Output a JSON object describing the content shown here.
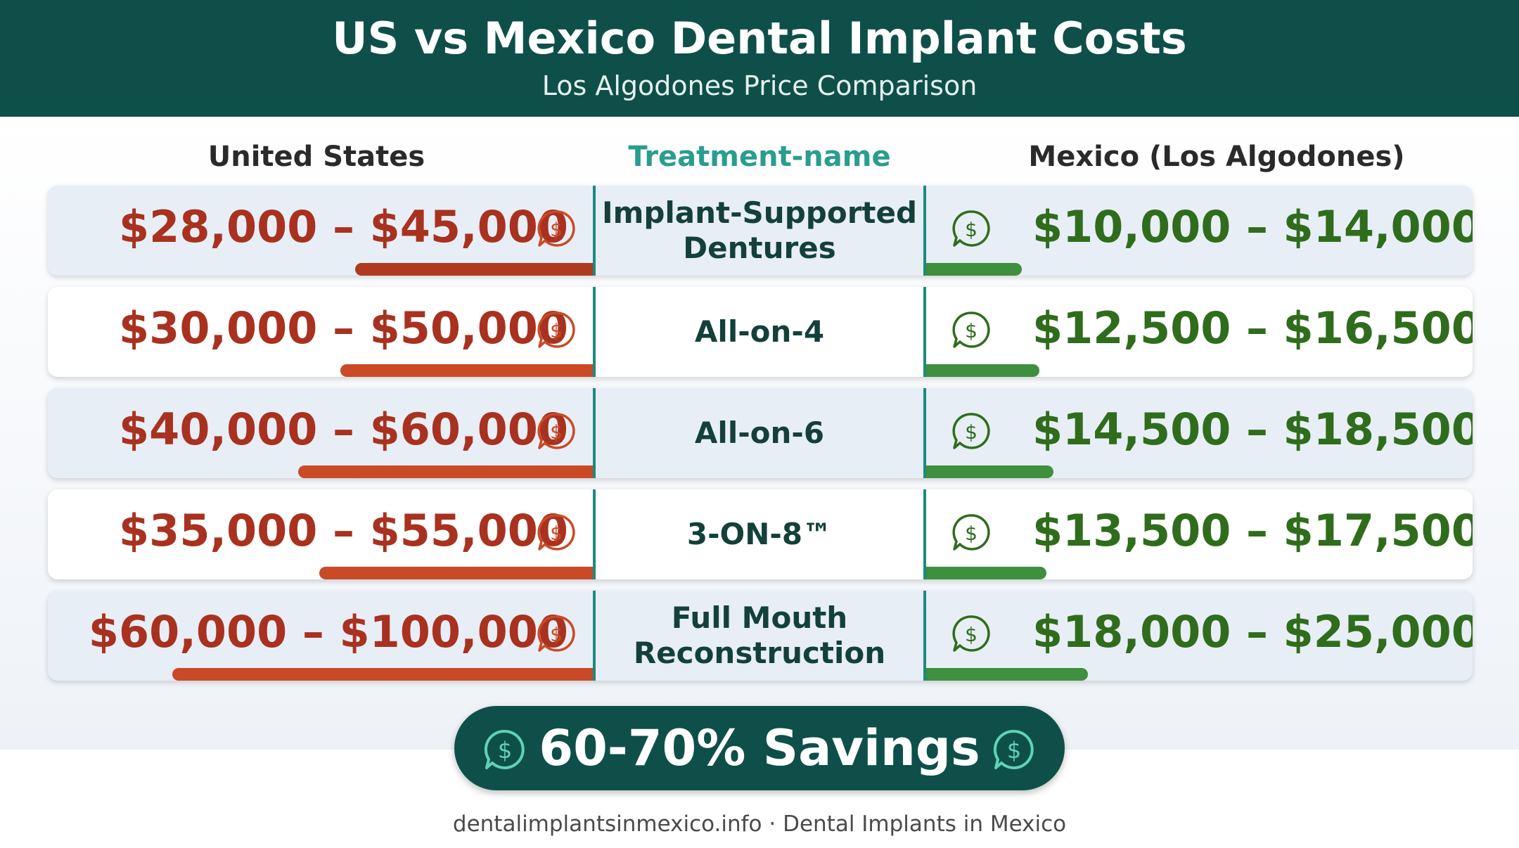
{
  "header": {
    "title": "US vs Mexico Dental Implant Costs",
    "subtitle": "Los Algodones Price Comparison"
  },
  "columns": {
    "us": "United States",
    "treatment": "Treatment-name",
    "mexico": "Mexico (Los Algodones)"
  },
  "colors": {
    "header_bg": "#0f4f49",
    "us_text": "#a8321f",
    "mx_text": "#2f6d1c",
    "us_bar": "#c94a25",
    "mx_bar": "#3e8f3e",
    "accent": "#2a9d8f"
  },
  "chart_data": {
    "type": "table",
    "rows": [
      {
        "treatment": "Implant-Supported Dentures",
        "us": "$28,000 – $45,000",
        "mexico": "$10,000 – $14,000",
        "us_range": [
          28000,
          45000
        ],
        "mx_range": [
          10000,
          14000
        ]
      },
      {
        "treatment": "All-on-4",
        "us": "$30,000 – $50,000",
        "mexico": "$12,500 – $16,500",
        "us_range": [
          30000,
          50000
        ],
        "mx_range": [
          12500,
          16500
        ]
      },
      {
        "treatment": "All-on-6",
        "us": "$40,000 – $60,000",
        "mexico": "$14,500 – $18,500",
        "us_range": [
          40000,
          60000
        ],
        "mx_range": [
          14500,
          18500
        ]
      },
      {
        "treatment": "3-ON-8™",
        "us": "$35,000 – $55,000",
        "mexico": "$13,500 – $17,500",
        "us_range": [
          35000,
          55000
        ],
        "mx_range": [
          13500,
          17500
        ]
      },
      {
        "treatment": "Full Mouth Reconstruction",
        "us": "$60,000 – $100,000",
        "mexico": "$18,000 – $25,000",
        "us_range": [
          60000,
          100000
        ],
        "mx_range": [
          18000,
          25000
        ]
      }
    ]
  },
  "savings": {
    "label": "60-70% Savings"
  },
  "footer": {
    "text": "dentalimplantsinmexico.info · Dental Implants in Mexico"
  },
  "icons": {
    "price": "dollar-chat-icon"
  }
}
